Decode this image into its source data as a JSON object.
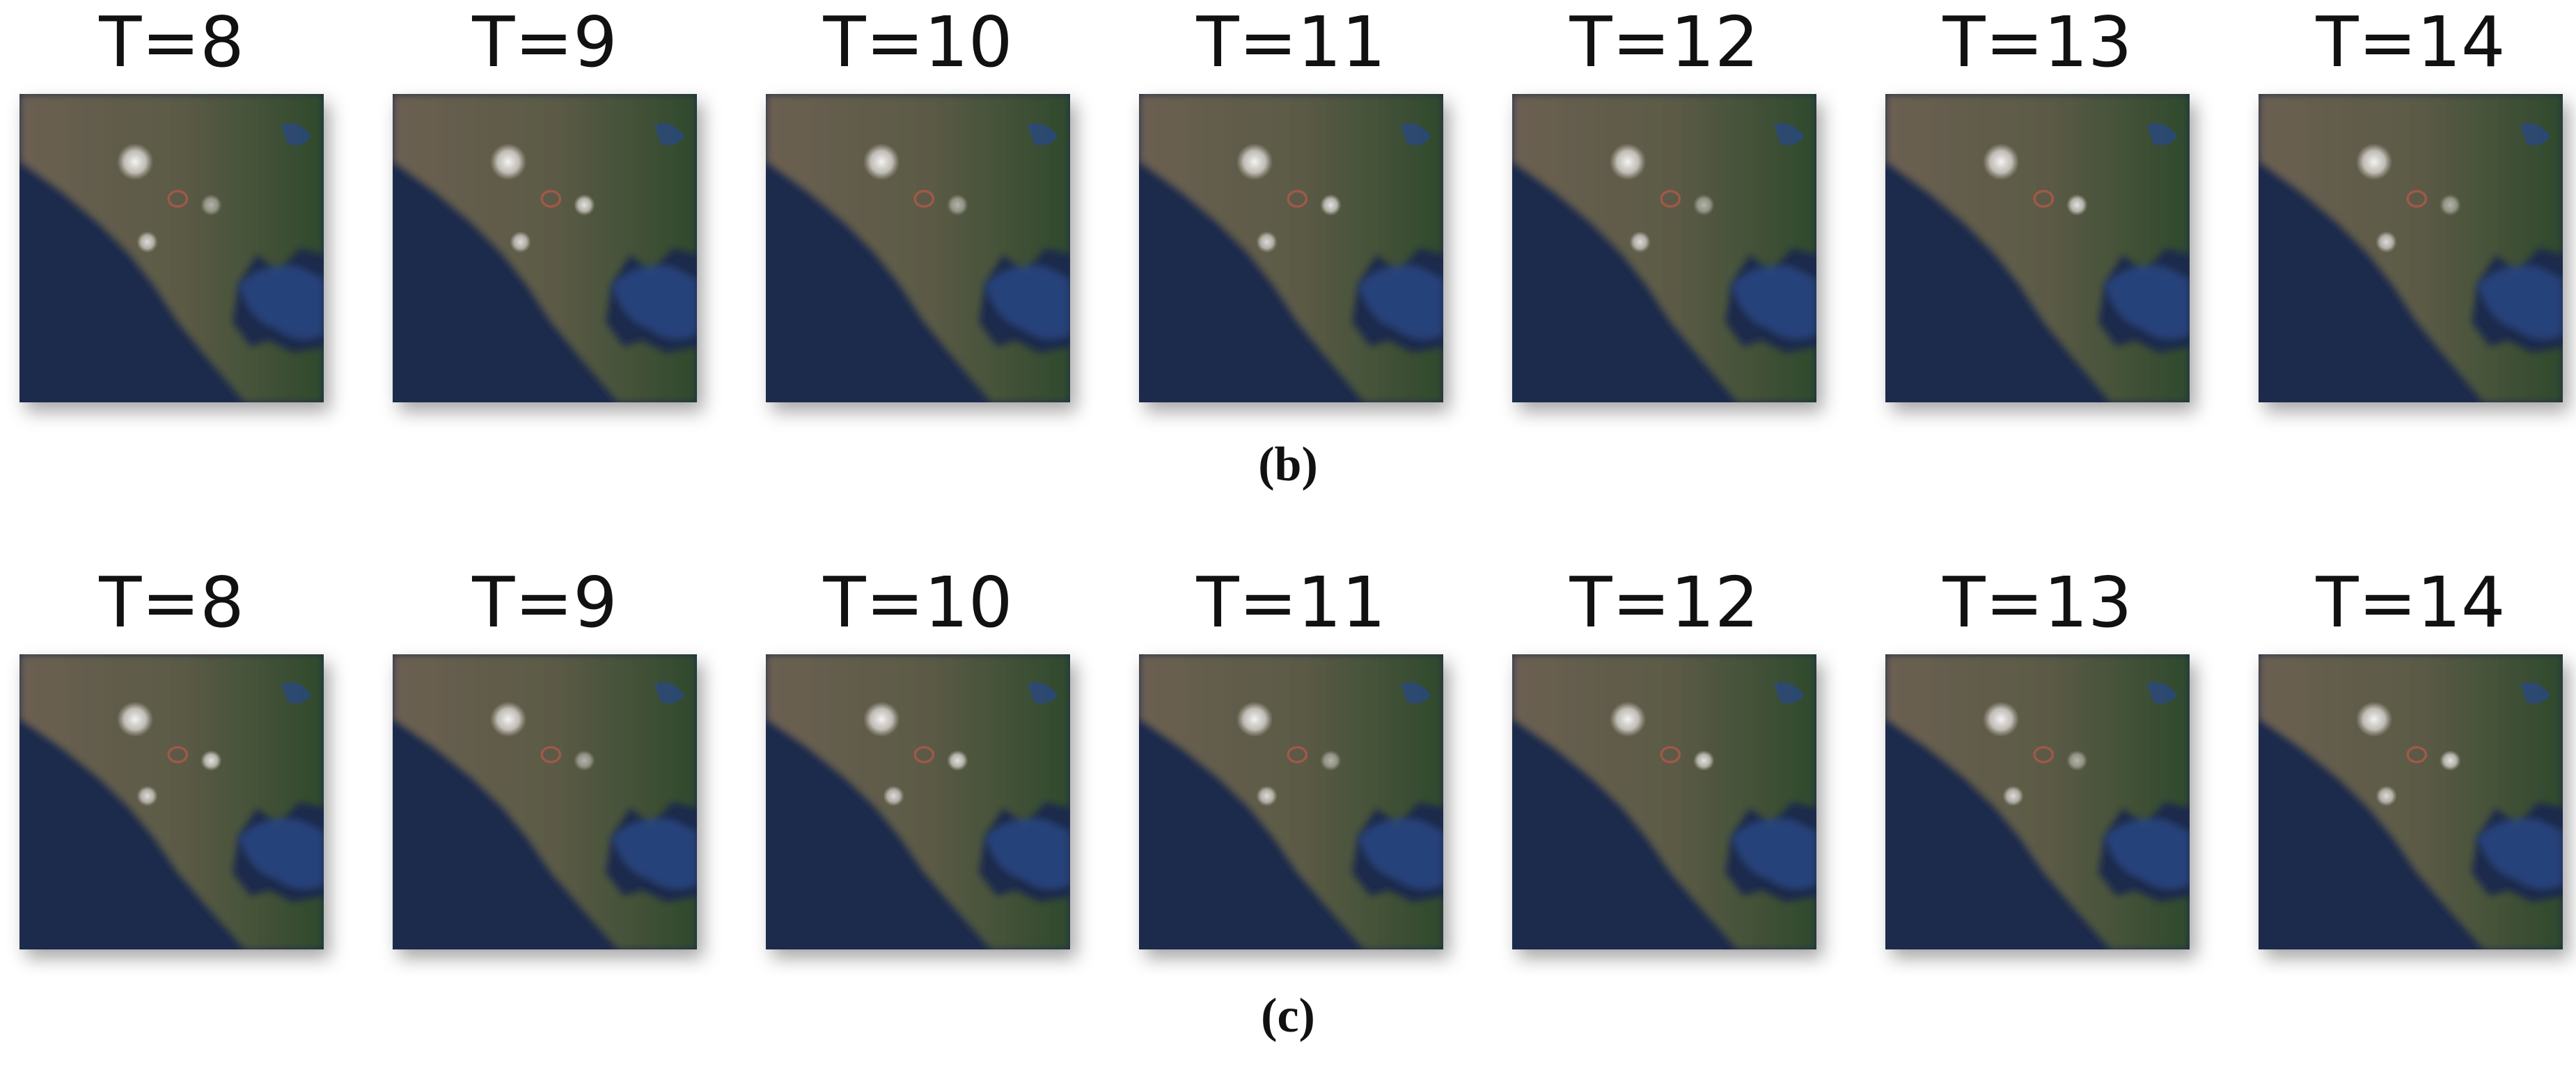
{
  "panels": [
    {
      "caption": "(b)",
      "frames": [
        {
          "label": "T=8"
        },
        {
          "label": "T=9"
        },
        {
          "label": "T=10"
        },
        {
          "label": "T=11"
        },
        {
          "label": "T=12"
        },
        {
          "label": "T=13"
        },
        {
          "label": "T=14"
        }
      ]
    },
    {
      "caption": "(c)",
      "frames": [
        {
          "label": "T=8"
        },
        {
          "label": "T=9"
        },
        {
          "label": "T=10"
        },
        {
          "label": "T=11"
        },
        {
          "label": "T=12"
        },
        {
          "label": "T=13"
        },
        {
          "label": "T=14"
        }
      ]
    }
  ]
}
